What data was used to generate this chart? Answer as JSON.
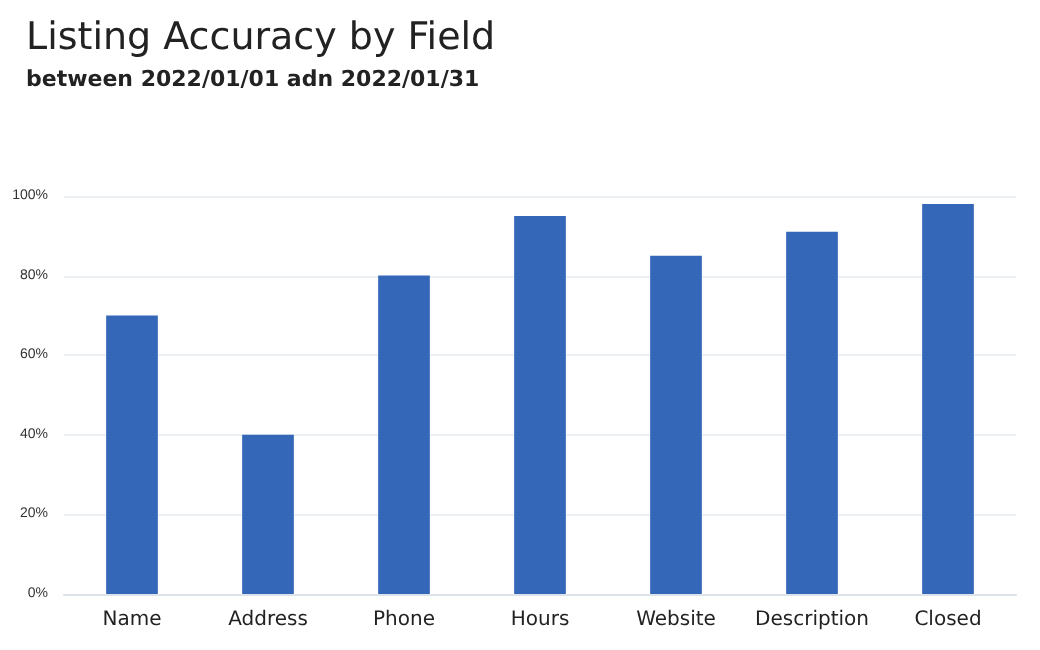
{
  "chart_data": {
    "type": "bar",
    "title": "Listing Accuracy by Field",
    "subtitle": "between 2022/01/01 adn 2022/01/31",
    "categories": [
      "Name",
      "Address",
      "Phone",
      "Hours",
      "Website",
      "Description",
      "Closed"
    ],
    "values": [
      70,
      40,
      80,
      95,
      85,
      91,
      98
    ],
    "color": "#3467b8",
    "ylim": [
      0,
      100
    ],
    "yticks": [
      {
        "value": 0,
        "label": "0%"
      },
      {
        "value": 20,
        "label": "20%"
      },
      {
        "value": 40,
        "label": "40%"
      },
      {
        "value": 60,
        "label": "60%"
      },
      {
        "value": 80,
        "label": "80%"
      },
      {
        "value": 100,
        "label": "100%"
      }
    ],
    "grid": "y"
  }
}
